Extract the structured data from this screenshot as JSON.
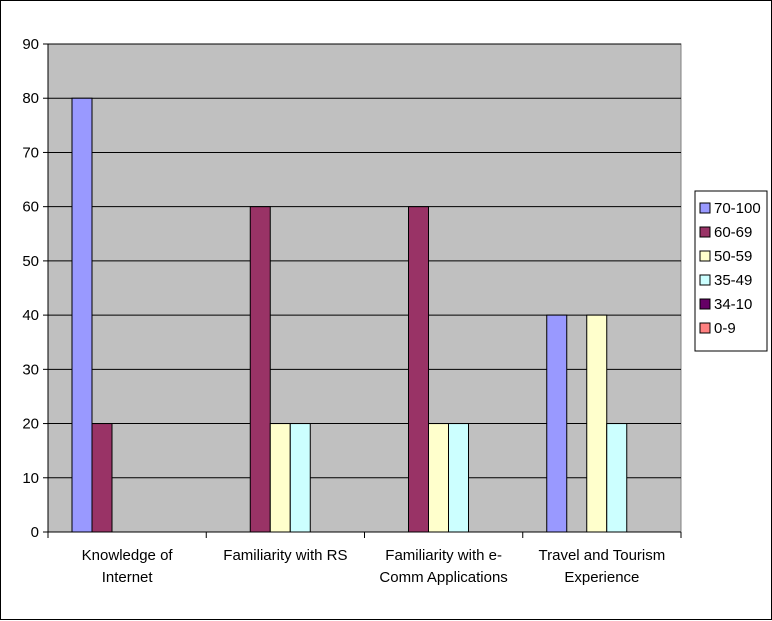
{
  "chart_data": {
    "type": "bar",
    "categories": [
      [
        "Knowledge of",
        "Internet"
      ],
      [
        "Familiarity with RS"
      ],
      [
        "Familiarity with e-",
        "Comm Applications"
      ],
      [
        "Travel and Tourism",
        "Experience"
      ]
    ],
    "series": [
      {
        "name": "70-100",
        "color": "#9999ff",
        "values": [
          80,
          0,
          0,
          40
        ]
      },
      {
        "name": "60-69",
        "color": "#993366",
        "values": [
          20,
          60,
          60,
          0
        ]
      },
      {
        "name": "50-59",
        "color": "#ffffcc",
        "values": [
          0,
          20,
          20,
          40
        ]
      },
      {
        "name": "35-49",
        "color": "#ccffff",
        "values": [
          0,
          20,
          20,
          20
        ]
      },
      {
        "name": "34-10",
        "color": "#660066",
        "values": [
          0,
          0,
          0,
          0
        ]
      },
      {
        "name": "0-9",
        "color": "#ff8080",
        "values": [
          0,
          0,
          0,
          0
        ]
      }
    ],
    "ylim": [
      0,
      90
    ],
    "yticks": [
      0,
      10,
      20,
      30,
      40,
      50,
      60,
      70,
      80,
      90
    ],
    "plot_background": "#c0c0c0",
    "grid": true,
    "legend_position": "right",
    "title": "",
    "xlabel": "",
    "ylabel": ""
  }
}
